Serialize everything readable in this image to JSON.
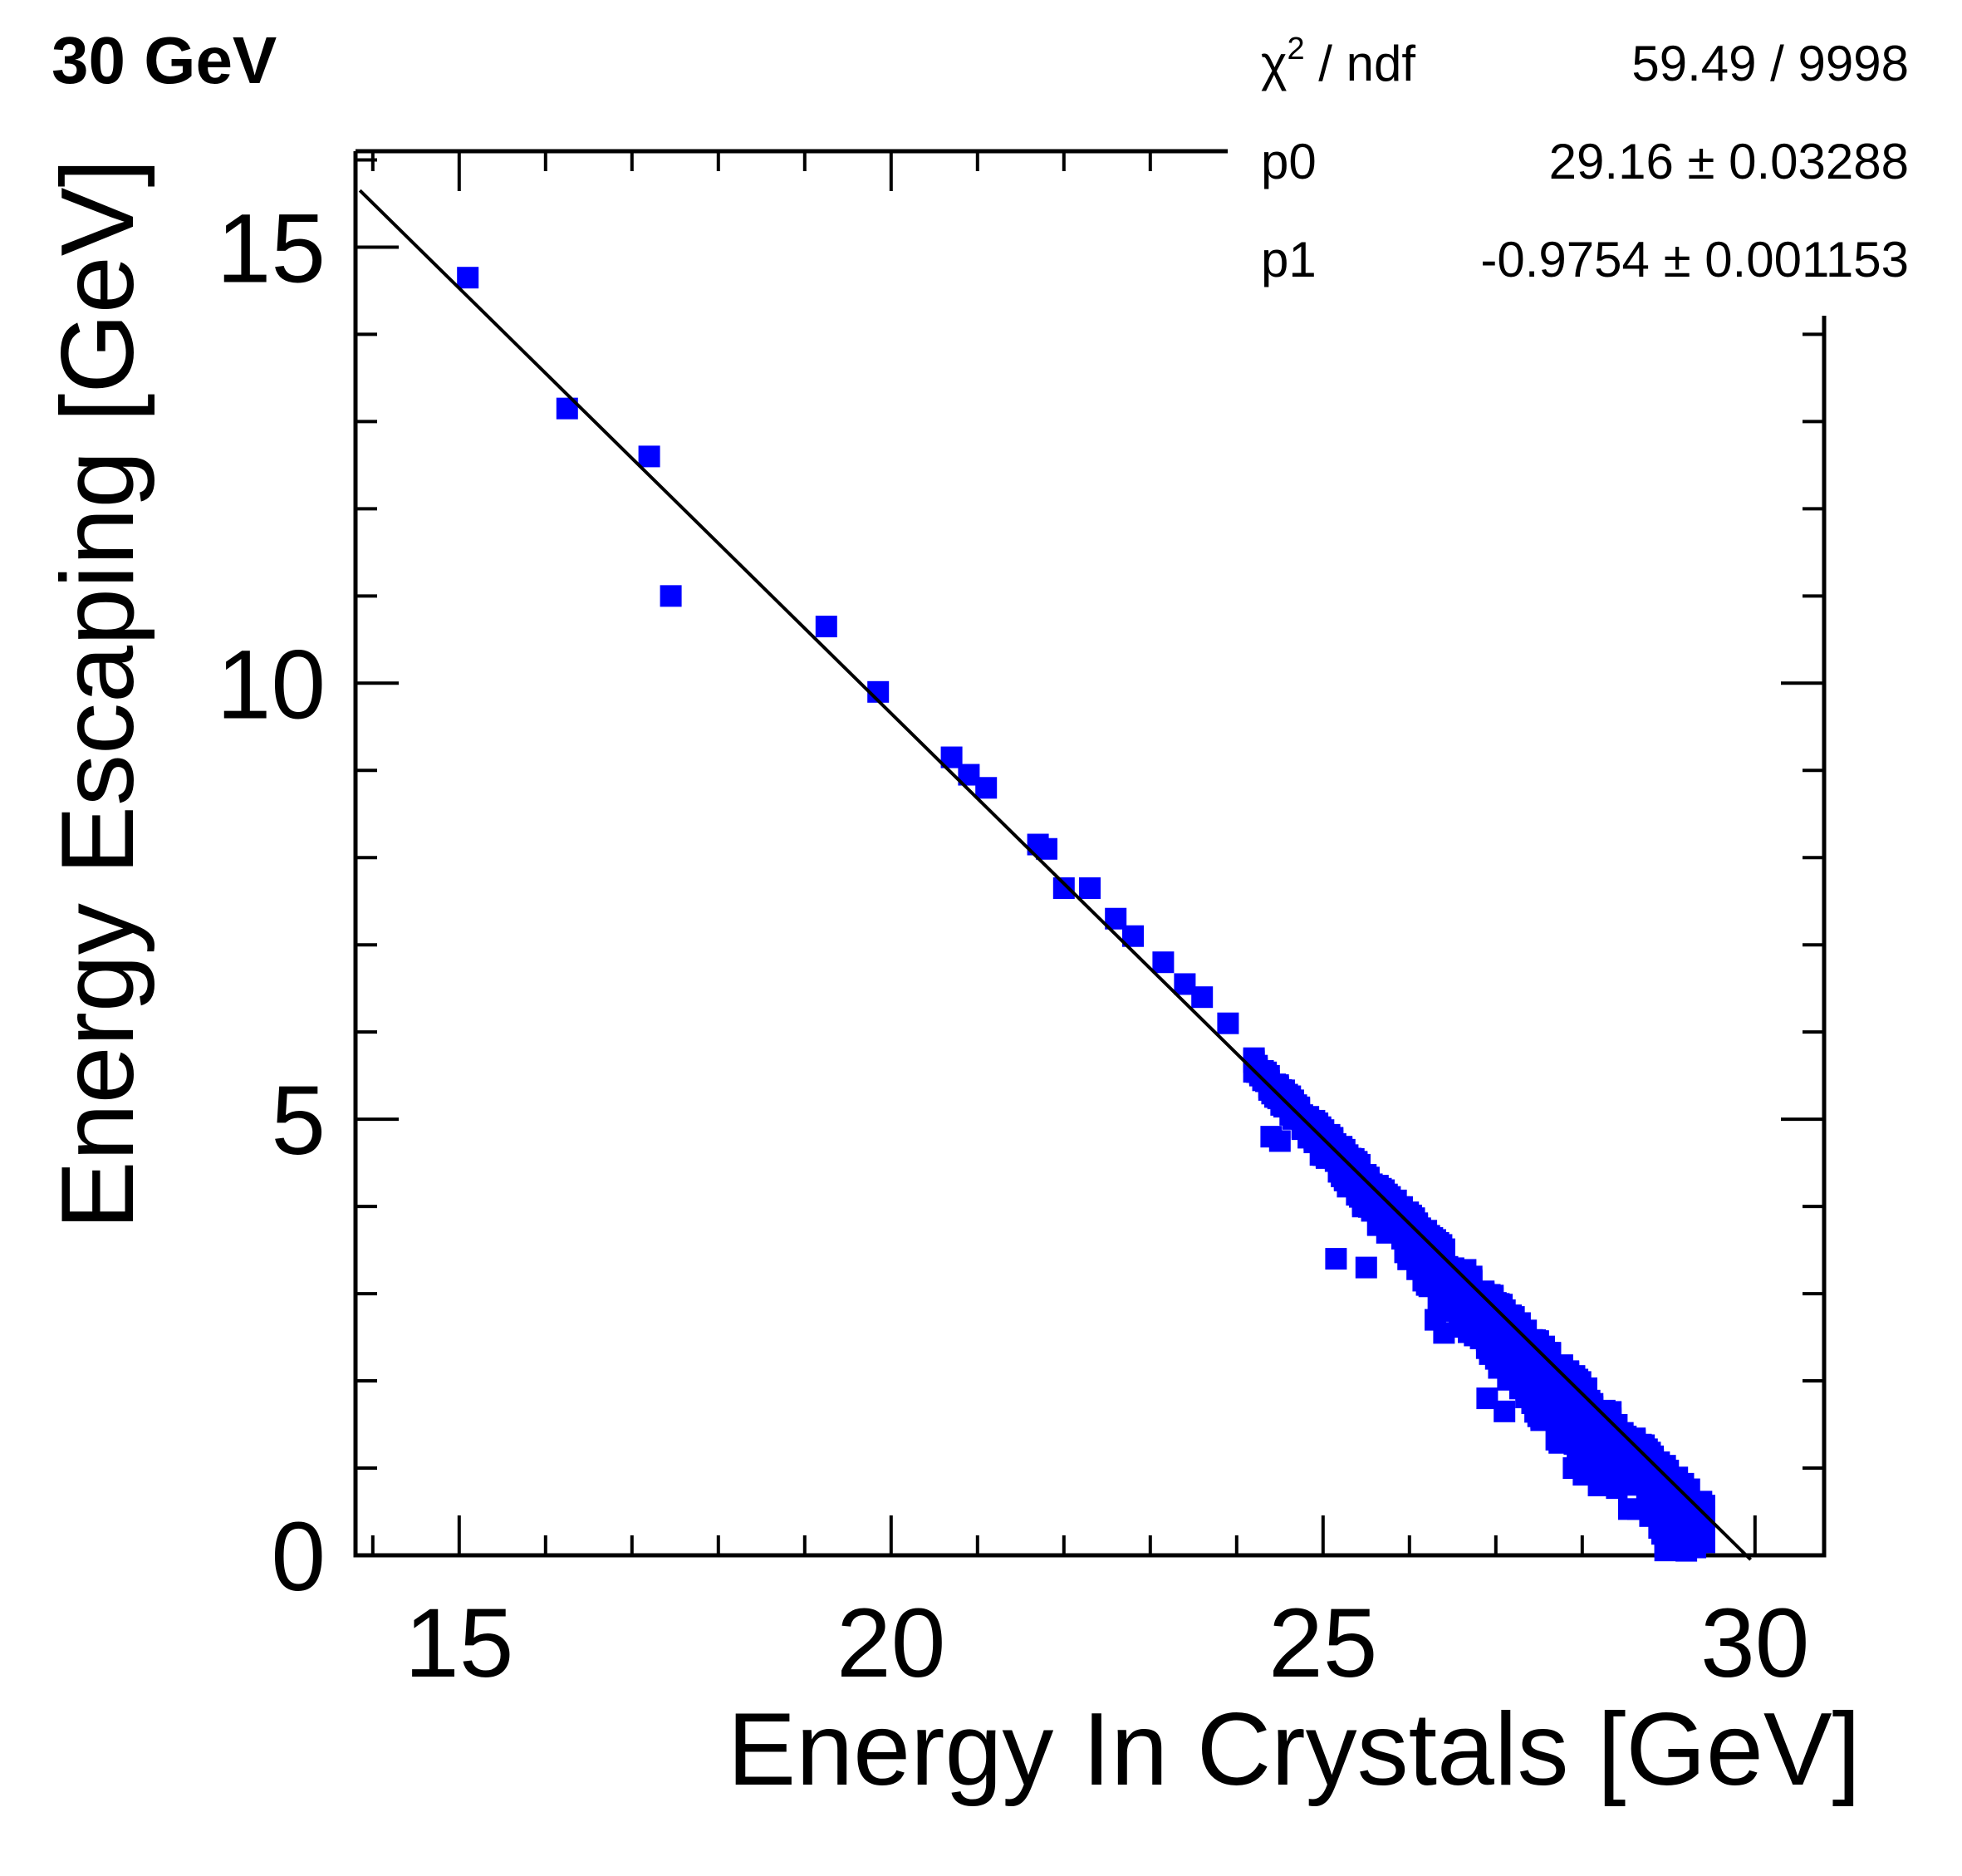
{
  "chart_data": {
    "type": "scatter",
    "title": "30 GeV",
    "xlabel": "Energy In Crystals [GeV]",
    "ylabel": "Energy Escaping [GeV]",
    "xlim": [
      13.8,
      30.8
    ],
    "ylim": [
      0,
      16.1
    ],
    "x_ticks": [
      15,
      20,
      25,
      30
    ],
    "y_ticks": [
      0,
      5,
      10,
      15
    ],
    "marker_color": "#0000ff",
    "fit_line_color": "#000000",
    "fit": {
      "p0": 29.16,
      "p1": -0.9754
    },
    "stats": {
      "chi2_label": "χ",
      "chi2_sup": "2",
      "chi2_rest": " / ndf",
      "chi2_value": "59.49 / 9998",
      "p0_label": "p0",
      "p0_value": "29.16",
      "p0_err": "0.03288",
      "p1_label": "p1",
      "p1_value": "-0.9754",
      "p1_err": "0.001153",
      "pm": "±"
    },
    "outliers": [
      [
        15.1,
        14.65
      ],
      [
        16.25,
        13.15
      ],
      [
        17.2,
        12.6
      ],
      [
        17.45,
        11.0
      ],
      [
        19.25,
        10.65
      ],
      [
        19.85,
        9.9
      ],
      [
        20.7,
        9.15
      ],
      [
        20.9,
        8.95
      ],
      [
        21.1,
        8.8
      ],
      [
        21.7,
        8.15
      ],
      [
        21.8,
        8.1
      ],
      [
        22.0,
        7.65
      ],
      [
        22.3,
        7.65
      ],
      [
        22.6,
        7.3
      ],
      [
        22.8,
        7.1
      ],
      [
        23.15,
        6.8
      ],
      [
        23.4,
        6.55
      ],
      [
        23.6,
        6.4
      ],
      [
        23.9,
        6.1
      ],
      [
        24.2,
        5.7
      ],
      [
        24.4,
        4.8
      ],
      [
        24.5,
        4.75
      ],
      [
        25.15,
        3.4
      ],
      [
        25.5,
        3.3
      ],
      [
        26.2,
        3.1
      ],
      [
        26.3,
        2.7
      ],
      [
        26.4,
        2.55
      ],
      [
        26.5,
        2.9
      ],
      [
        26.9,
        1.8
      ],
      [
        27.1,
        1.65
      ],
      [
        27.9,
        1.0
      ],
      [
        28.1,
        0.95
      ]
    ],
    "band": {
      "x_start": 24.2,
      "x_end": 29.45,
      "upper_offset": 0.12,
      "lower_offset_max": 0.9
    }
  }
}
